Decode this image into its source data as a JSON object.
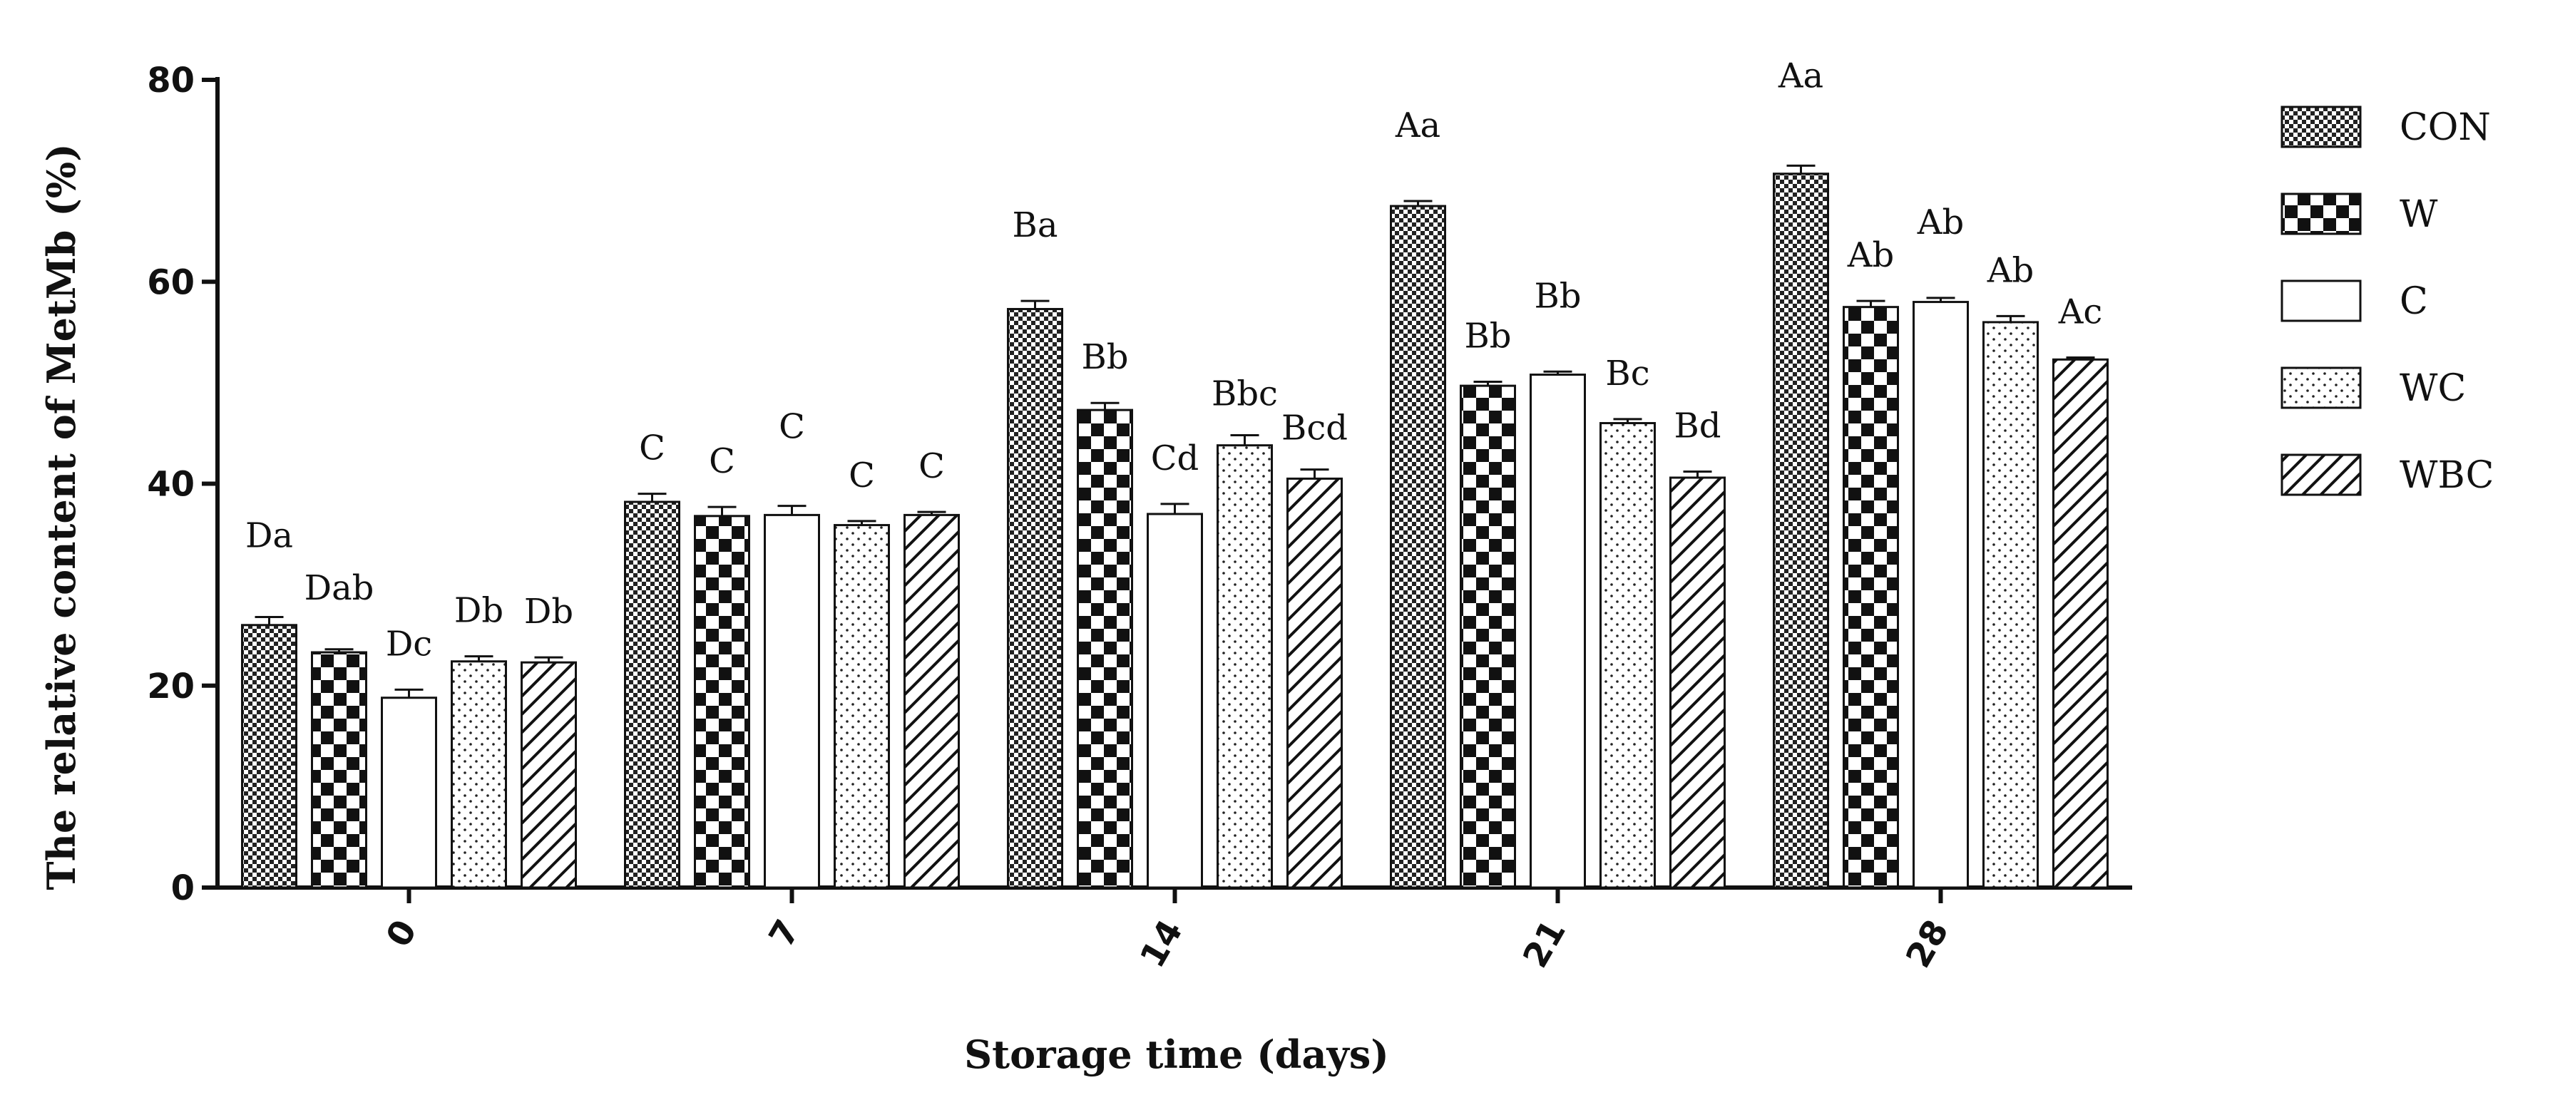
{
  "chart_data": {
    "type": "bar",
    "title": "",
    "xlabel": "Storage time (days)",
    "ylabel": "The relative content of MetMb (%)",
    "ylim": [
      0,
      80
    ],
    "yticks": [
      "0",
      "20",
      "40",
      "60",
      "80"
    ],
    "categories": [
      "0",
      "7",
      "14",
      "21",
      "28"
    ],
    "grid": false,
    "legend_position": "right",
    "series": [
      {
        "name": "CON",
        "pattern": "checker-fine",
        "values": [
          26.0,
          38.2,
          57.3,
          67.5,
          70.7
        ],
        "errors": [
          0.8,
          0.8,
          0.8,
          0.5,
          0.8
        ],
        "labels": [
          "Da",
          "C",
          "Ba",
          "Aa",
          "Aa"
        ]
      },
      {
        "name": "W",
        "pattern": "checker-large",
        "values": [
          23.3,
          36.8,
          47.3,
          49.7,
          57.5
        ],
        "errors": [
          0.3,
          0.9,
          0.7,
          0.4,
          0.6
        ],
        "labels": [
          "Dab",
          "C",
          "Bb",
          "Bb",
          "Ab"
        ]
      },
      {
        "name": "C",
        "pattern": "empty",
        "values": [
          18.8,
          36.9,
          37.0,
          50.8,
          58.0
        ],
        "errors": [
          0.8,
          0.9,
          1.0,
          0.3,
          0.4
        ],
        "labels": [
          "Dc",
          "C",
          "Cd",
          "Bb",
          "Ab"
        ]
      },
      {
        "name": "WC",
        "pattern": "dots",
        "values": [
          22.4,
          35.9,
          43.8,
          46.0,
          56.0
        ],
        "errors": [
          0.5,
          0.4,
          1.0,
          0.4,
          0.6
        ],
        "labels": [
          "Db",
          "C",
          "Bbc",
          "Bc",
          "Ab"
        ]
      },
      {
        "name": "WBC",
        "pattern": "diagonal",
        "values": [
          22.3,
          36.9,
          40.5,
          40.6,
          52.3
        ],
        "errors": [
          0.5,
          0.3,
          0.9,
          0.6,
          0.2
        ],
        "labels": [
          "Db",
          "C",
          "Bcd",
          "Bd",
          "Ac"
        ]
      }
    ]
  }
}
